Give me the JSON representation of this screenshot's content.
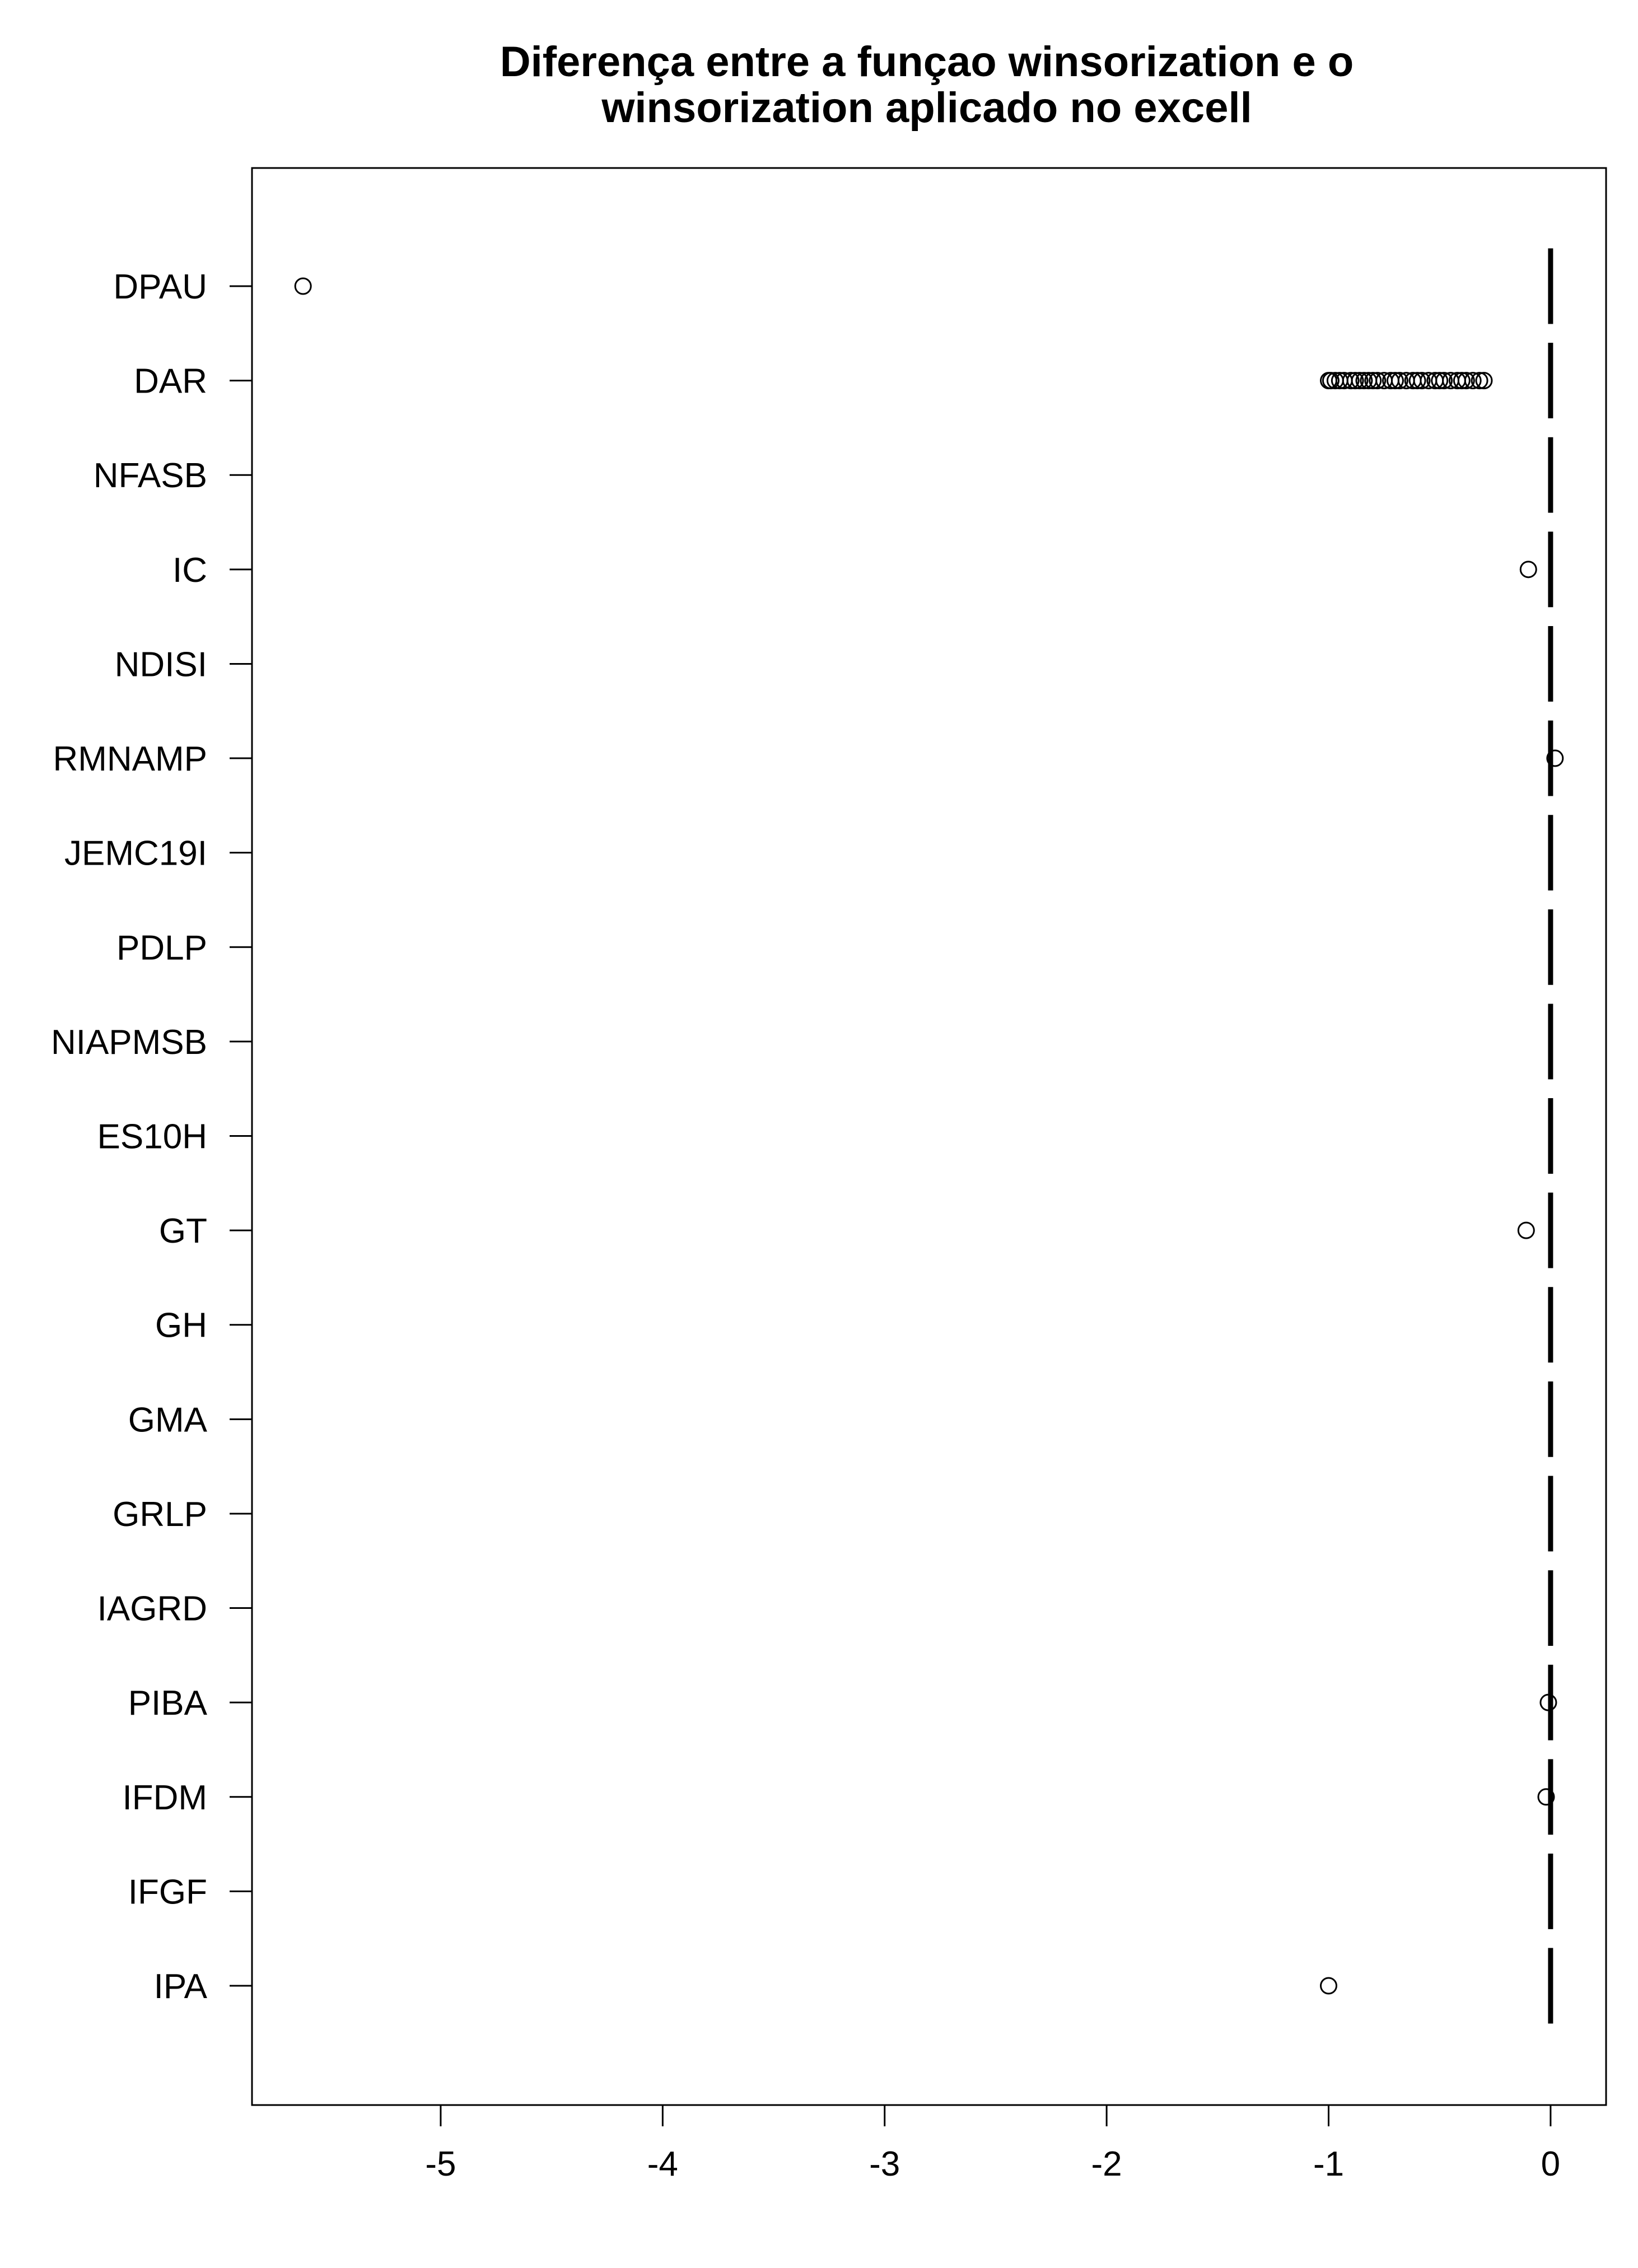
{
  "chart_data": {
    "type": "boxplot",
    "orientation": "horizontal",
    "title": [
      "Diferença entre a funçao winsorization e o",
      "winsorization aplicado no excell"
    ],
    "xlabel": "",
    "ylabel": "",
    "xlim": [
      -5.85,
      0.25
    ],
    "xticks": [
      -5,
      -4,
      -3,
      -2,
      -1,
      0
    ],
    "xtick_labels": [
      "-5",
      "-4",
      "-3",
      "-2",
      "-1",
      "0"
    ],
    "grid": false,
    "legend": "none",
    "colors": {
      "stroke": "#000000",
      "background": "#ffffff"
    },
    "categories": [
      "DPAU",
      "DAR",
      "NFASB",
      "IC",
      "NDISI",
      "RMNAMP",
      "JEMC19I",
      "PDLP",
      "NIAPMSB",
      "ES10H",
      "GT",
      "GH",
      "GMA",
      "GRLP",
      "IAGRD",
      "PIBA",
      "IFDM",
      "IFGF",
      "IPA"
    ],
    "box_median": [
      0,
      0,
      0,
      0,
      0,
      0,
      0,
      0,
      0,
      0,
      0,
      0,
      0,
      0,
      0,
      0,
      0,
      0,
      0
    ],
    "outliers": [
      {
        "category": "DPAU",
        "values": [
          -5.62
        ]
      },
      {
        "category": "DAR",
        "values": [
          -1.0,
          -0.99,
          -0.97,
          -0.95,
          -0.93,
          -0.9,
          -0.88,
          -0.86,
          -0.84,
          -0.82,
          -0.8,
          -0.78,
          -0.75,
          -0.72,
          -0.7,
          -0.68,
          -0.65,
          -0.62,
          -0.6,
          -0.58,
          -0.55,
          -0.52,
          -0.5,
          -0.48,
          -0.45,
          -0.42,
          -0.4,
          -0.38,
          -0.35,
          -0.32,
          -0.3
        ]
      },
      {
        "category": "IC",
        "values": [
          -0.1
        ]
      },
      {
        "category": "RMNAMP",
        "values": [
          0.02
        ]
      },
      {
        "category": "GT",
        "values": [
          -0.11
        ]
      },
      {
        "category": "PIBA",
        "values": [
          -0.01
        ]
      },
      {
        "category": "IFDM",
        "values": [
          -0.02
        ]
      },
      {
        "category": "IPA",
        "values": [
          -1.0
        ]
      }
    ]
  }
}
